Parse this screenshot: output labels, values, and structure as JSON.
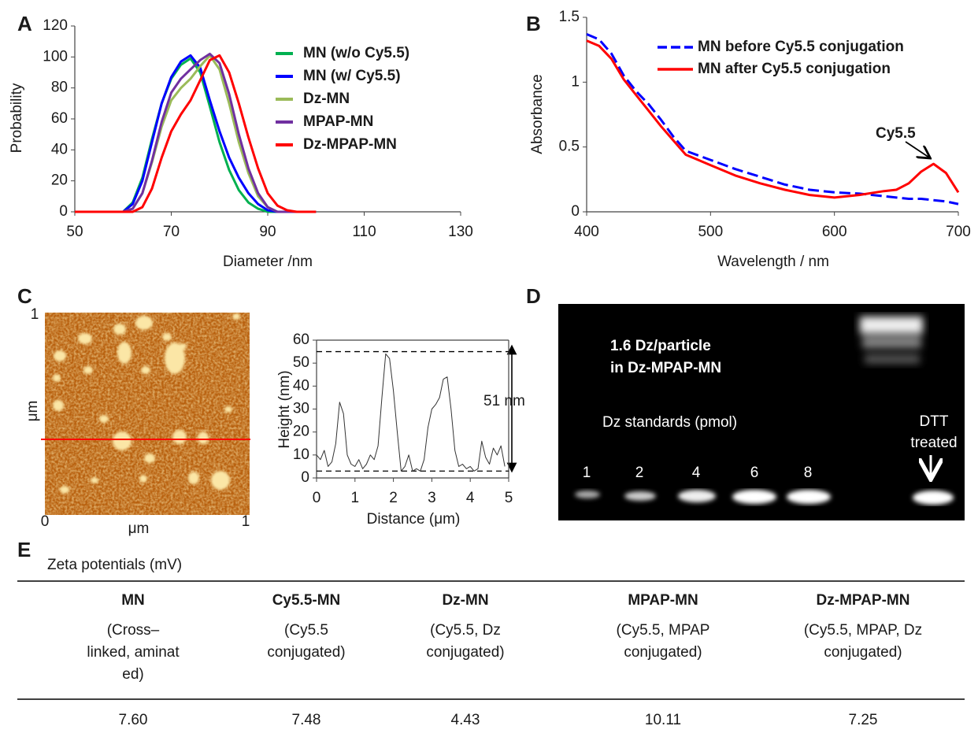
{
  "panel_labels": [
    "A",
    "B",
    "C",
    "D",
    "E"
  ],
  "chart_data": [
    {
      "type": "line",
      "xlabel": "Diameter /nm",
      "ylabel": "Probability",
      "x": [
        50,
        60,
        62,
        64,
        66,
        68,
        70,
        72,
        74,
        76,
        78,
        80,
        82,
        84,
        86,
        88,
        90,
        92,
        94,
        96,
        100
      ],
      "xlim": [
        50,
        130
      ],
      "xticks": [
        50,
        70,
        90,
        110,
        130
      ],
      "ylim": [
        0,
        120
      ],
      "yticks": [
        0,
        20,
        40,
        60,
        80,
        100,
        120
      ],
      "series": [
        {
          "name": "MN (w/o Cy5.5)",
          "color": "#00b050",
          "values": [
            0,
            0,
            6,
            22,
            47,
            70,
            86,
            95,
            99,
            90,
            68,
            45,
            27,
            14,
            6,
            2,
            0,
            0,
            0,
            0,
            0
          ]
        },
        {
          "name": "MN (w/ Cy5.5)",
          "color": "#0000ff",
          "values": [
            0,
            0,
            5,
            20,
            45,
            70,
            87,
            97,
            101,
            93,
            72,
            52,
            35,
            22,
            12,
            5,
            1,
            0,
            0,
            0,
            0
          ]
        },
        {
          "name": "Dz-MN",
          "color": "#9bbb59",
          "values": [
            0,
            0,
            2,
            12,
            32,
            55,
            72,
            80,
            86,
            94,
            101,
            92,
            70,
            45,
            25,
            10,
            3,
            0,
            0,
            0,
            0
          ]
        },
        {
          "name": "MPAP-MN",
          "color": "#7030a0",
          "values": [
            0,
            0,
            2,
            12,
            33,
            58,
            77,
            86,
            92,
            98,
            102,
            96,
            76,
            50,
            28,
            12,
            3,
            0,
            0,
            0,
            0
          ]
        },
        {
          "name": "Dz-MPAP-MN",
          "color": "#ff0000",
          "values": [
            0,
            0,
            0,
            3,
            15,
            35,
            52,
            63,
            72,
            85,
            98,
            101,
            90,
            70,
            48,
            28,
            12,
            4,
            1,
            0,
            0
          ]
        }
      ]
    },
    {
      "type": "line",
      "xlabel": "Wavelength / nm",
      "ylabel": "Absorbance",
      "annotation": "Cy5.5",
      "x": [
        400,
        410,
        420,
        430,
        440,
        450,
        460,
        470,
        480,
        500,
        520,
        540,
        560,
        580,
        600,
        620,
        640,
        650,
        660,
        670,
        680,
        690,
        700
      ],
      "xlim": [
        400,
        700
      ],
      "xticks": [
        400,
        500,
        600,
        700
      ],
      "ylim": [
        0,
        1.5
      ],
      "yticks": [
        0,
        0.5,
        1,
        1.5
      ],
      "series": [
        {
          "name": "MN before Cy5.5 conjugation",
          "color": "#0000ff",
          "dashed": true,
          "values": [
            1.37,
            1.33,
            1.22,
            1.05,
            0.93,
            0.83,
            0.71,
            0.58,
            0.47,
            0.4,
            0.33,
            0.27,
            0.21,
            0.17,
            0.15,
            0.14,
            0.12,
            0.11,
            0.1,
            0.1,
            0.09,
            0.08,
            0.06
          ]
        },
        {
          "name": "MN after Cy5.5 conjugation",
          "color": "#ff0000",
          "values": [
            1.32,
            1.28,
            1.18,
            1.02,
            0.9,
            0.78,
            0.66,
            0.55,
            0.44,
            0.36,
            0.28,
            0.22,
            0.17,
            0.13,
            0.11,
            0.13,
            0.16,
            0.17,
            0.22,
            0.31,
            0.37,
            0.3,
            0.15
          ]
        }
      ]
    },
    {
      "type": "line",
      "xlabel": "Distance (μm)",
      "ylabel": "Height (nm)",
      "annotation": "51 nm",
      "x": [
        0,
        0.1,
        0.2,
        0.3,
        0.4,
        0.5,
        0.6,
        0.7,
        0.8,
        0.9,
        1.0,
        1.1,
        1.2,
        1.3,
        1.4,
        1.5,
        1.6,
        1.7,
        1.8,
        1.9,
        2.0,
        2.1,
        2.2,
        2.3,
        2.4,
        2.5,
        2.6,
        2.7,
        2.8,
        2.9,
        3.0,
        3.1,
        3.2,
        3.3,
        3.4,
        3.5,
        3.6,
        3.7,
        3.8,
        3.9,
        4.0,
        4.1,
        4.2,
        4.3,
        4.4,
        4.5,
        4.6,
        4.7,
        4.8,
        4.9
      ],
      "xlim": [
        0,
        5
      ],
      "xticks": [
        0,
        1,
        2,
        3,
        4,
        5
      ],
      "ylim": [
        0,
        60
      ],
      "yticks": [
        0,
        10,
        20,
        30,
        40,
        50,
        60
      ],
      "reference_lines": [
        3,
        55
      ],
      "series": [
        {
          "color": "#333333",
          "values": [
            10,
            8,
            12,
            5,
            7,
            15,
            33,
            28,
            10,
            6,
            5,
            8,
            4,
            6,
            10,
            8,
            14,
            35,
            54,
            52,
            38,
            20,
            3,
            5,
            10,
            3,
            4,
            3,
            8,
            22,
            30,
            32,
            35,
            43,
            44,
            30,
            12,
            5,
            6,
            4,
            5,
            3,
            4,
            16,
            9,
            6,
            13,
            10,
            14,
            5
          ]
        }
      ]
    }
  ],
  "afm": {
    "top_label": "1",
    "y_unit": "μm",
    "origin_label": "0",
    "x_unit": "μm",
    "right_label": "1"
  },
  "gel": {
    "note": [
      "1.6 Dz/particle",
      "in Dz-MPAP-MN"
    ],
    "standards_label": "Dz standards (pmol)",
    "lanes": [
      "1",
      "2",
      "4",
      "6",
      "8"
    ],
    "treated_label": [
      "DTT",
      "treated"
    ]
  },
  "table": {
    "caption": "Zeta potentials (mV)",
    "columns": [
      {
        "header": "MN",
        "detail": [
          "(Cross–",
          "linked, aminat",
          "ed)"
        ],
        "value": "7.60"
      },
      {
        "header": "Cy5.5-MN",
        "detail": [
          "(Cy5.5",
          "conjugated)"
        ],
        "value": "7.48"
      },
      {
        "header": "Dz-MN",
        "detail": [
          "(Cy5.5, Dz",
          "conjugated)"
        ],
        "value": "4.43"
      },
      {
        "header": "MPAP-MN",
        "detail": [
          "(Cy5.5, MPAP",
          "conjugated)"
        ],
        "value": "10.11"
      },
      {
        "header": "Dz-MPAP-MN",
        "detail": [
          "(Cy5.5, MPAP, Dz",
          "conjugated)"
        ],
        "value": "7.25"
      }
    ]
  }
}
